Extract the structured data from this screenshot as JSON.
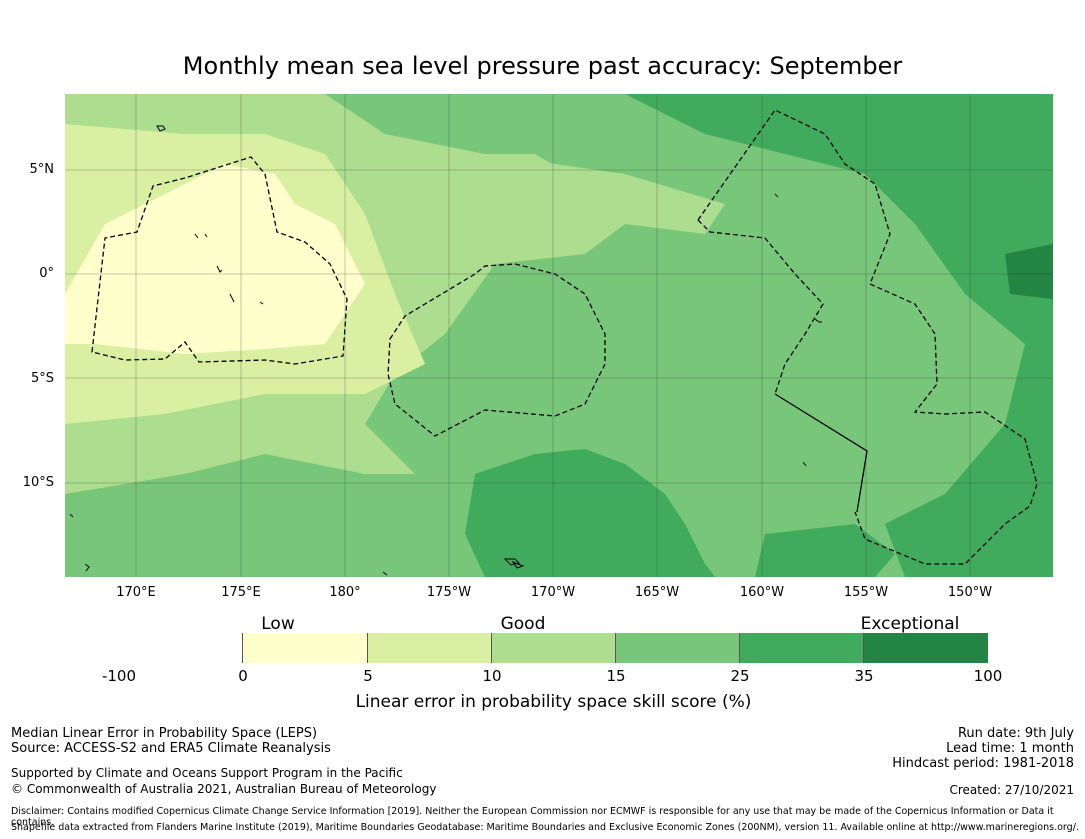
{
  "title": "Monthly mean sea level pressure past accuracy: September",
  "map": {
    "lat_labels": [
      "5°N",
      "0°",
      "5°S",
      "10°S"
    ],
    "lon_labels": [
      "170°E",
      "175°E",
      "180°",
      "175°W",
      "170°W",
      "165°W",
      "160°W",
      "155°W",
      "150°W"
    ],
    "land_color": "#000000",
    "boundary_style": "dashed"
  },
  "colorbar": {
    "categories": [
      "Low",
      "Good",
      "Exceptional"
    ],
    "ticks": [
      "-100",
      "0",
      "5",
      "10",
      "15",
      "25",
      "35",
      "100"
    ],
    "colors": [
      "#ffffff",
      "#ffffcc",
      "#d9f0a3",
      "#addd8e",
      "#78c679",
      "#41ab5d",
      "#238443"
    ],
    "label": "Linear error in probability space skill score (%)"
  },
  "footer": {
    "line1": "Median Linear Error in Probability Space (LEPS)",
    "line2": "Source: ACCESS-S2 and ERA5 Climate Reanalysis",
    "line3": "Supported by Climate and Oceans Support Program in the Pacific",
    "line4": "© Commonwealth of Australia 2021, Australian Bureau of Meteorology",
    "run_date": "Run date: 9th July",
    "lead_time": "Lead time: 1 month",
    "hindcast": "Hindcast period: 1981-2018",
    "created": "Created: 27/10/2021",
    "disclaimer": "Disclaimer: Contains modified Copernicus Climate Change Service Information [2019]. Neither the European Commission nor ECMWF is responsible for any use that may be made of the Copernicus Information or Data it contains.",
    "shapefile": "Shapefile data extracted from Flanders Marine Institute (2019), Maritime Boundaries Geodatabase: Maritime Boundaries and Exclusive Economic Zones (200NM), version 11. Available online at http://www.marineregions.org/."
  }
}
